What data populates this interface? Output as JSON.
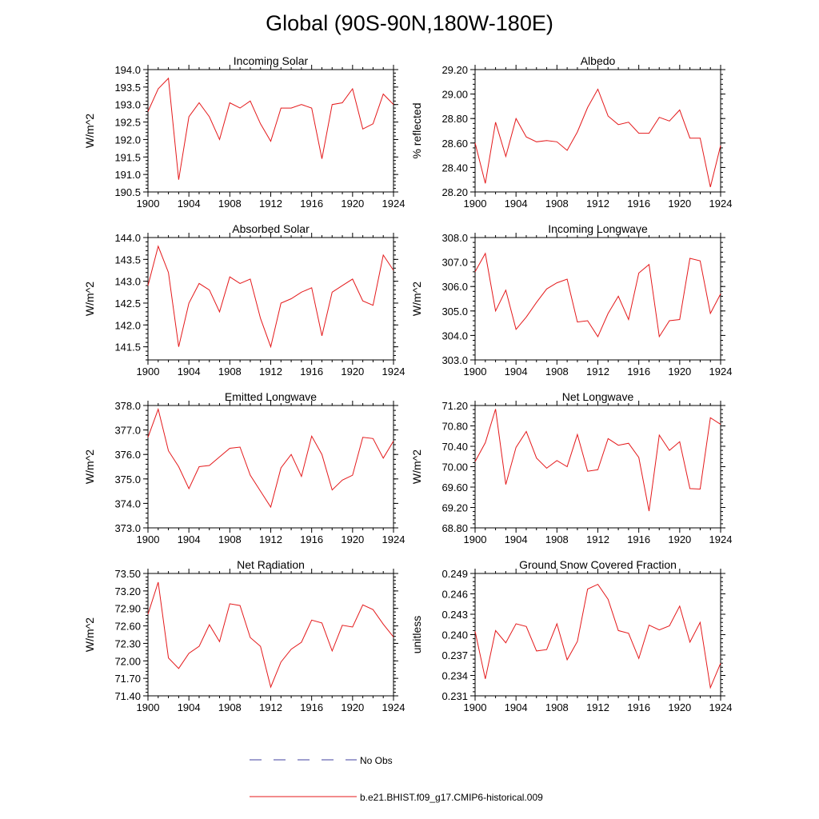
{
  "title": "Global (90S-90N,180W-180E)",
  "series_color": "#e4191b",
  "obs_color": "#4040a0",
  "legend": {
    "obs_label": "No Obs",
    "model_label": "b.e21.BHIST.f09_g17.CMIP6-historical.009"
  },
  "chart_data": [
    {
      "type": "line",
      "title": "Incoming Solar",
      "ylabel": "W/m^2",
      "xlim": [
        1900,
        1924
      ],
      "ylim": [
        190.5,
        194.0
      ],
      "yticks": [
        190.5,
        191.0,
        191.5,
        192.0,
        192.5,
        193.0,
        193.5,
        194.0
      ],
      "ydecimals": 1,
      "xticks": [
        1900,
        1904,
        1908,
        1912,
        1916,
        1920,
        1924
      ],
      "series": [
        {
          "name": "b.e21.BHIST.f09_g17.CMIP6-historical.009",
          "x": [
            1900,
            1901,
            1902,
            1903,
            1904,
            1905,
            1906,
            1907,
            1908,
            1909,
            1910,
            1911,
            1912,
            1913,
            1914,
            1915,
            1916,
            1917,
            1918,
            1919,
            1920,
            1921,
            1922,
            1923,
            1924
          ],
          "values": [
            192.8,
            193.45,
            193.75,
            190.85,
            192.65,
            193.05,
            192.65,
            192.0,
            193.05,
            192.9,
            193.1,
            192.45,
            191.95,
            192.9,
            192.9,
            193.0,
            192.9,
            191.45,
            193.0,
            193.05,
            193.45,
            192.3,
            192.45,
            193.3,
            193.0
          ]
        }
      ]
    },
    {
      "type": "line",
      "title": "Albedo",
      "ylabel": "% reflected",
      "xlim": [
        1900,
        1924
      ],
      "ylim": [
        28.2,
        29.2
      ],
      "yticks": [
        28.2,
        28.4,
        28.6,
        28.8,
        29.0,
        29.2
      ],
      "ydecimals": 2,
      "xticks": [
        1900,
        1904,
        1908,
        1912,
        1916,
        1920,
        1924
      ],
      "series": [
        {
          "name": "b.e21.BHIST.f09_g17.CMIP6-historical.009",
          "x": [
            1900,
            1901,
            1902,
            1903,
            1904,
            1905,
            1906,
            1907,
            1908,
            1909,
            1910,
            1911,
            1912,
            1913,
            1914,
            1915,
            1916,
            1917,
            1918,
            1919,
            1920,
            1921,
            1922,
            1923,
            1924
          ],
          "values": [
            28.6,
            28.27,
            28.77,
            28.49,
            28.8,
            28.65,
            28.61,
            28.62,
            28.61,
            28.54,
            28.69,
            28.89,
            29.04,
            28.82,
            28.75,
            28.77,
            28.68,
            28.68,
            28.81,
            28.78,
            28.87,
            28.64,
            28.64,
            28.24,
            28.58
          ]
        }
      ]
    },
    {
      "type": "line",
      "title": "Absorbed Solar",
      "ylabel": "W/m^2",
      "xlim": [
        1900,
        1924
      ],
      "ylim": [
        141.2,
        144.0
      ],
      "yticks": [
        141.5,
        142.0,
        142.5,
        143.0,
        143.5,
        144.0
      ],
      "ydecimals": 1,
      "xticks": [
        1900,
        1904,
        1908,
        1912,
        1916,
        1920,
        1924
      ],
      "series": [
        {
          "name": "b.e21.BHIST.f09_g17.CMIP6-historical.009",
          "x": [
            1900,
            1901,
            1902,
            1903,
            1904,
            1905,
            1906,
            1907,
            1908,
            1909,
            1910,
            1911,
            1912,
            1913,
            1914,
            1915,
            1916,
            1917,
            1918,
            1919,
            1920,
            1921,
            1922,
            1923,
            1924
          ],
          "values": [
            142.9,
            143.8,
            143.2,
            141.5,
            142.5,
            142.95,
            142.8,
            142.3,
            143.1,
            142.95,
            143.05,
            142.15,
            141.5,
            142.5,
            142.6,
            142.75,
            142.85,
            141.75,
            142.75,
            142.9,
            143.05,
            142.55,
            142.45,
            143.6,
            143.25
          ]
        }
      ]
    },
    {
      "type": "line",
      "title": "Incoming Longwave",
      "ylabel": "W/m^2",
      "xlim": [
        1900,
        1924
      ],
      "ylim": [
        303.0,
        308.0
      ],
      "yticks": [
        303.0,
        304.0,
        305.0,
        306.0,
        307.0,
        308.0
      ],
      "ydecimals": 1,
      "xticks": [
        1900,
        1904,
        1908,
        1912,
        1916,
        1920,
        1924
      ],
      "series": [
        {
          "name": "b.e21.BHIST.f09_g17.CMIP6-historical.009",
          "x": [
            1900,
            1901,
            1902,
            1903,
            1904,
            1905,
            1906,
            1907,
            1908,
            1909,
            1910,
            1911,
            1912,
            1913,
            1914,
            1915,
            1916,
            1917,
            1918,
            1919,
            1920,
            1921,
            1922,
            1923,
            1924
          ],
          "values": [
            306.6,
            307.35,
            305.0,
            305.85,
            304.25,
            304.75,
            305.35,
            305.9,
            306.15,
            306.3,
            304.55,
            304.6,
            303.95,
            304.9,
            305.6,
            304.65,
            306.55,
            306.9,
            303.95,
            304.6,
            304.65,
            307.15,
            307.05,
            304.9,
            305.7
          ]
        }
      ]
    },
    {
      "type": "line",
      "title": "Emitted Longwave",
      "ylabel": "W/m^2",
      "xlim": [
        1900,
        1924
      ],
      "ylim": [
        373.0,
        378.0
      ],
      "yticks": [
        373.0,
        374.0,
        375.0,
        376.0,
        377.0,
        378.0
      ],
      "ydecimals": 1,
      "xticks": [
        1900,
        1904,
        1908,
        1912,
        1916,
        1920,
        1924
      ],
      "series": [
        {
          "name": "b.e21.BHIST.f09_g17.CMIP6-historical.009",
          "x": [
            1900,
            1901,
            1902,
            1903,
            1904,
            1905,
            1906,
            1907,
            1908,
            1909,
            1910,
            1911,
            1912,
            1913,
            1914,
            1915,
            1916,
            1917,
            1918,
            1919,
            1920,
            1921,
            1922,
            1923,
            1924
          ],
          "values": [
            376.7,
            377.85,
            376.15,
            375.5,
            374.6,
            375.5,
            375.55,
            375.9,
            376.25,
            376.3,
            375.15,
            374.5,
            373.85,
            375.45,
            376.0,
            375.1,
            376.75,
            376.0,
            374.55,
            374.95,
            375.15,
            376.7,
            376.65,
            375.85,
            376.55
          ]
        }
      ]
    },
    {
      "type": "line",
      "title": "Net Longwave",
      "ylabel": "W/m^2",
      "xlim": [
        1900,
        1924
      ],
      "ylim": [
        68.8,
        71.2
      ],
      "yticks": [
        68.8,
        69.2,
        69.6,
        70.0,
        70.4,
        70.8,
        71.2
      ],
      "ydecimals": 2,
      "xticks": [
        1900,
        1904,
        1908,
        1912,
        1916,
        1920,
        1924
      ],
      "series": [
        {
          "name": "b.e21.BHIST.f09_g17.CMIP6-historical.009",
          "x": [
            1900,
            1901,
            1902,
            1903,
            1904,
            1905,
            1906,
            1907,
            1908,
            1909,
            1910,
            1911,
            1912,
            1913,
            1914,
            1915,
            1916,
            1917,
            1918,
            1919,
            1920,
            1921,
            1922,
            1923,
            1924
          ],
          "values": [
            70.1,
            70.47,
            71.13,
            69.65,
            70.38,
            70.69,
            70.17,
            69.97,
            70.12,
            70.0,
            70.63,
            69.91,
            69.94,
            70.55,
            70.42,
            70.46,
            70.18,
            69.13,
            70.62,
            70.32,
            70.49,
            69.57,
            69.56,
            70.96,
            70.83
          ]
        }
      ]
    },
    {
      "type": "line",
      "title": "Net Radiation",
      "ylabel": "W/m^2",
      "xlim": [
        1900,
        1924
      ],
      "ylim": [
        71.4,
        73.5
      ],
      "yticks": [
        71.4,
        71.7,
        72.0,
        72.3,
        72.6,
        72.9,
        73.2,
        73.5
      ],
      "ydecimals": 2,
      "xticks": [
        1900,
        1904,
        1908,
        1912,
        1916,
        1920,
        1924
      ],
      "series": [
        {
          "name": "b.e21.BHIST.f09_g17.CMIP6-historical.009",
          "x": [
            1900,
            1901,
            1902,
            1903,
            1904,
            1905,
            1906,
            1907,
            1908,
            1909,
            1910,
            1911,
            1912,
            1913,
            1914,
            1915,
            1916,
            1917,
            1918,
            1919,
            1920,
            1921,
            1922,
            1923,
            1924
          ],
          "values": [
            72.8,
            73.35,
            72.05,
            71.87,
            72.13,
            72.25,
            72.62,
            72.33,
            72.98,
            72.95,
            72.4,
            72.25,
            71.55,
            71.98,
            72.2,
            72.32,
            72.7,
            72.65,
            72.17,
            72.61,
            72.58,
            72.96,
            72.88,
            72.63,
            72.41
          ]
        }
      ]
    },
    {
      "type": "line",
      "title": "Ground Snow Covered Fraction",
      "ylabel": "unitless",
      "xlim": [
        1900,
        1924
      ],
      "ylim": [
        0.231,
        0.249
      ],
      "yticks": [
        0.231,
        0.234,
        0.237,
        0.24,
        0.243,
        0.246,
        0.249
      ],
      "ydecimals": 3,
      "xticks": [
        1900,
        1904,
        1908,
        1912,
        1916,
        1920,
        1924
      ],
      "series": [
        {
          "name": "b.e21.BHIST.f09_g17.CMIP6-historical.009",
          "x": [
            1900,
            1901,
            1902,
            1903,
            1904,
            1905,
            1906,
            1907,
            1908,
            1909,
            1910,
            1911,
            1912,
            1913,
            1914,
            1915,
            1916,
            1917,
            1918,
            1919,
            1920,
            1921,
            1922,
            1923,
            1924
          ],
          "values": [
            0.2405,
            0.2335,
            0.2406,
            0.2388,
            0.2416,
            0.2412,
            0.2376,
            0.2378,
            0.2416,
            0.2363,
            0.239,
            0.2467,
            0.2474,
            0.2452,
            0.2406,
            0.2402,
            0.2365,
            0.2414,
            0.2407,
            0.2413,
            0.2442,
            0.2389,
            0.2418,
            0.2322,
            0.2358
          ]
        }
      ]
    }
  ]
}
